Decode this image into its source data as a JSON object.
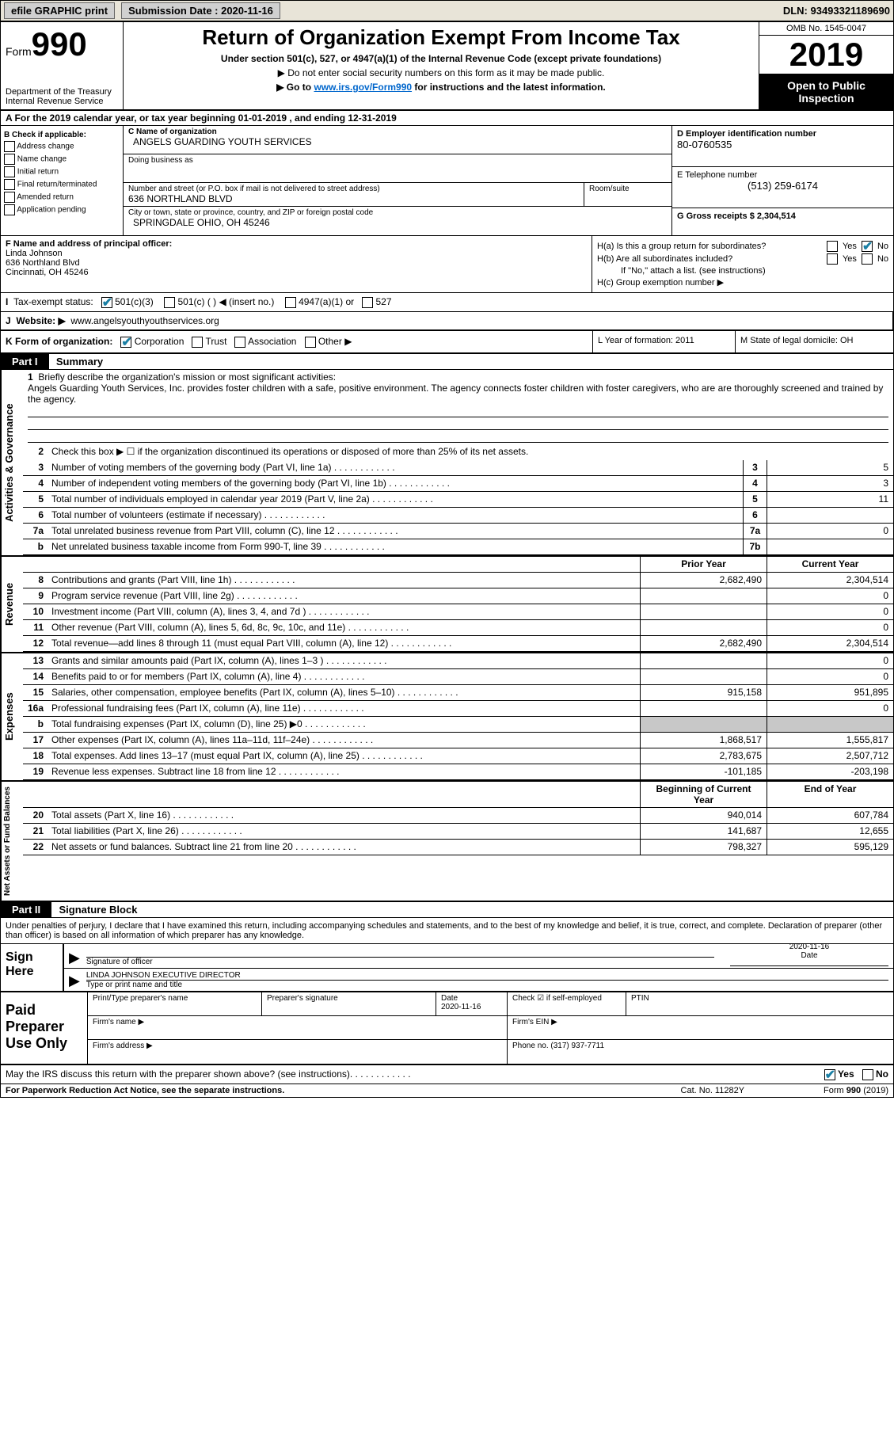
{
  "topbar": {
    "efile_label": "efile GRAPHIC print",
    "submission_label": "Submission Date : 2020-11-16",
    "dln_label": "DLN: 93493321189690"
  },
  "header": {
    "form_word": "Form",
    "form_num": "990",
    "dept": "Department of the Treasury\nInternal Revenue Service",
    "title": "Return of Organization Exempt From Income Tax",
    "subtitle": "Under section 501(c), 527, or 4947(a)(1) of the Internal Revenue Code (except private foundations)",
    "note1": "▶ Do not enter social security numbers on this form as it may be made public.",
    "note2_pre": "▶ Go to ",
    "note2_link": "www.irs.gov/Form990",
    "note2_post": " for instructions and the latest information.",
    "omb": "OMB No. 1545-0047",
    "year": "2019",
    "inspect": "Open to Public Inspection"
  },
  "row_a": "A For the 2019 calendar year, or tax year beginning 01-01-2019   , and ending 12-31-2019",
  "col_b": {
    "hdr": "B Check if applicable:",
    "items": [
      "Address change",
      "Name change",
      "Initial return",
      "Final return/terminated",
      "Amended return",
      "Application pending"
    ]
  },
  "col_c": {
    "name_lbl": "C Name of organization",
    "name": "ANGELS GUARDING YOUTH SERVICES",
    "dba_lbl": "Doing business as",
    "addr_lbl": "Number and street (or P.O. box if mail is not delivered to street address)",
    "addr": "636 NORTHLAND BLVD",
    "room_lbl": "Room/suite",
    "city_lbl": "City or town, state or province, country, and ZIP or foreign postal code",
    "city": "SPRINGDALE OHIO, OH  45246"
  },
  "col_d": {
    "ein_lbl": "D Employer identification number",
    "ein": "80-0760535",
    "phone_lbl": "E Telephone number",
    "phone": "(513) 259-6174",
    "gross_lbl": "G Gross receipts $ 2,304,514"
  },
  "row_f": {
    "lbl": "F  Name and address of principal officer:",
    "name": "Linda Johnson",
    "addr1": "636 Northland Blvd",
    "addr2": "Cincinnati, OH  45246"
  },
  "row_h": {
    "ha": "H(a)  Is this a group return for subordinates?",
    "hb": "H(b)  Are all subordinates included?",
    "hb_note": "If \"No,\" attach a list. (see instructions)",
    "hc": "H(c)  Group exemption number ▶",
    "yes": "Yes",
    "no": "No"
  },
  "row_i": {
    "lbl": "Tax-exempt status:",
    "o1": "501(c)(3)",
    "o2": "501(c) (  ) ◀ (insert no.)",
    "o3": "4947(a)(1) or",
    "o4": "527"
  },
  "row_j": {
    "lbl": "J",
    "website_lbl": "Website: ▶",
    "website": "www.angelsyouthyouthservices.org"
  },
  "row_k": {
    "lbl": "K Form of organization:",
    "corp": "Corporation",
    "trust": "Trust",
    "assoc": "Association",
    "other": "Other ▶",
    "l_lbl": "L Year of formation: 2011",
    "m_lbl": "M State of legal domicile: OH"
  },
  "part1": {
    "hdr": "Part I",
    "title": "Summary",
    "l1_lbl": "Briefly describe the organization's mission or most significant activities:",
    "l1_text": "Angels Guarding Youth Services, Inc. provides foster children with a safe, positive environment. The agency connects foster children with foster caregivers, who are are thoroughly screened and trained by the agency.",
    "l2": "Check this box ▶ ☐  if the organization discontinued its operations or disposed of more than 25% of its net assets.",
    "lines_ag": [
      {
        "n": "3",
        "t": "Number of voting members of the governing body (Part VI, line 1a)",
        "b": "3",
        "v": "5"
      },
      {
        "n": "4",
        "t": "Number of independent voting members of the governing body (Part VI, line 1b)",
        "b": "4",
        "v": "3"
      },
      {
        "n": "5",
        "t": "Total number of individuals employed in calendar year 2019 (Part V, line 2a)",
        "b": "5",
        "v": "11"
      },
      {
        "n": "6",
        "t": "Total number of volunteers (estimate if necessary)",
        "b": "6",
        "v": ""
      },
      {
        "n": "7a",
        "t": "Total unrelated business revenue from Part VIII, column (C), line 12",
        "b": "7a",
        "v": "0"
      },
      {
        "n": "b",
        "t": "Net unrelated business taxable income from Form 990-T, line 39",
        "b": "7b",
        "v": ""
      }
    ],
    "col_hdr_prior": "Prior Year",
    "col_hdr_curr": "Current Year",
    "revenue": [
      {
        "n": "8",
        "t": "Contributions and grants (Part VIII, line 1h)",
        "p": "2,682,490",
        "c": "2,304,514"
      },
      {
        "n": "9",
        "t": "Program service revenue (Part VIII, line 2g)",
        "p": "",
        "c": "0"
      },
      {
        "n": "10",
        "t": "Investment income (Part VIII, column (A), lines 3, 4, and 7d )",
        "p": "",
        "c": "0"
      },
      {
        "n": "11",
        "t": "Other revenue (Part VIII, column (A), lines 5, 6d, 8c, 9c, 10c, and 11e)",
        "p": "",
        "c": "0"
      },
      {
        "n": "12",
        "t": "Total revenue—add lines 8 through 11 (must equal Part VIII, column (A), line 12)",
        "p": "2,682,490",
        "c": "2,304,514"
      }
    ],
    "expenses": [
      {
        "n": "13",
        "t": "Grants and similar amounts paid (Part IX, column (A), lines 1–3 )",
        "p": "",
        "c": "0"
      },
      {
        "n": "14",
        "t": "Benefits paid to or for members (Part IX, column (A), line 4)",
        "p": "",
        "c": "0"
      },
      {
        "n": "15",
        "t": "Salaries, other compensation, employee benefits (Part IX, column (A), lines 5–10)",
        "p": "915,158",
        "c": "951,895"
      },
      {
        "n": "16a",
        "t": "Professional fundraising fees (Part IX, column (A), line 11e)",
        "p": "",
        "c": "0"
      },
      {
        "n": "b",
        "t": "Total fundraising expenses (Part IX, column (D), line 25) ▶0",
        "p": "shaded",
        "c": "shaded"
      },
      {
        "n": "17",
        "t": "Other expenses (Part IX, column (A), lines 11a–11d, 11f–24e)",
        "p": "1,868,517",
        "c": "1,555,817"
      },
      {
        "n": "18",
        "t": "Total expenses. Add lines 13–17 (must equal Part IX, column (A), line 25)",
        "p": "2,783,675",
        "c": "2,507,712"
      },
      {
        "n": "19",
        "t": "Revenue less expenses. Subtract line 18 from line 12",
        "p": "-101,185",
        "c": "-203,198"
      }
    ],
    "col_hdr_beg": "Beginning of Current Year",
    "col_hdr_end": "End of Year",
    "netassets": [
      {
        "n": "20",
        "t": "Total assets (Part X, line 16)",
        "p": "940,014",
        "c": "607,784"
      },
      {
        "n": "21",
        "t": "Total liabilities (Part X, line 26)",
        "p": "141,687",
        "c": "12,655"
      },
      {
        "n": "22",
        "t": "Net assets or fund balances. Subtract line 21 from line 20",
        "p": "798,327",
        "c": "595,129"
      }
    ]
  },
  "part2": {
    "hdr": "Part II",
    "title": "Signature Block",
    "decl": "Under penalties of perjury, I declare that I have examined this return, including accompanying schedules and statements, and to the best of my knowledge and belief, it is true, correct, and complete. Declaration of preparer (other than officer) is based on all information of which preparer has any knowledge.",
    "sign_here": "Sign Here",
    "sig_officer": "Signature of officer",
    "date_lbl": "Date",
    "date_val": "2020-11-16",
    "name_title": "LINDA JOHNSON  EXECUTIVE DIRECTOR",
    "type_lbl": "Type or print name and title",
    "paid": "Paid Preparer Use Only",
    "prep_name_lbl": "Print/Type preparer's name",
    "prep_sig_lbl": "Preparer's signature",
    "prep_date": "2020-11-16",
    "check_self": "Check ☑ if self-employed",
    "ptin": "PTIN",
    "firm_name": "Firm's name   ▶",
    "firm_ein": "Firm's EIN ▶",
    "firm_addr": "Firm's address ▶",
    "phone_no": "Phone no. (317) 937-7711"
  },
  "footer": {
    "discuss": "May the IRS discuss this return with the preparer shown above? (see instructions)",
    "yes": "Yes",
    "no": "No",
    "pra": "For Paperwork Reduction Act Notice, see the separate instructions.",
    "cat": "Cat. No. 11282Y",
    "form": "Form 990 (2019)"
  }
}
